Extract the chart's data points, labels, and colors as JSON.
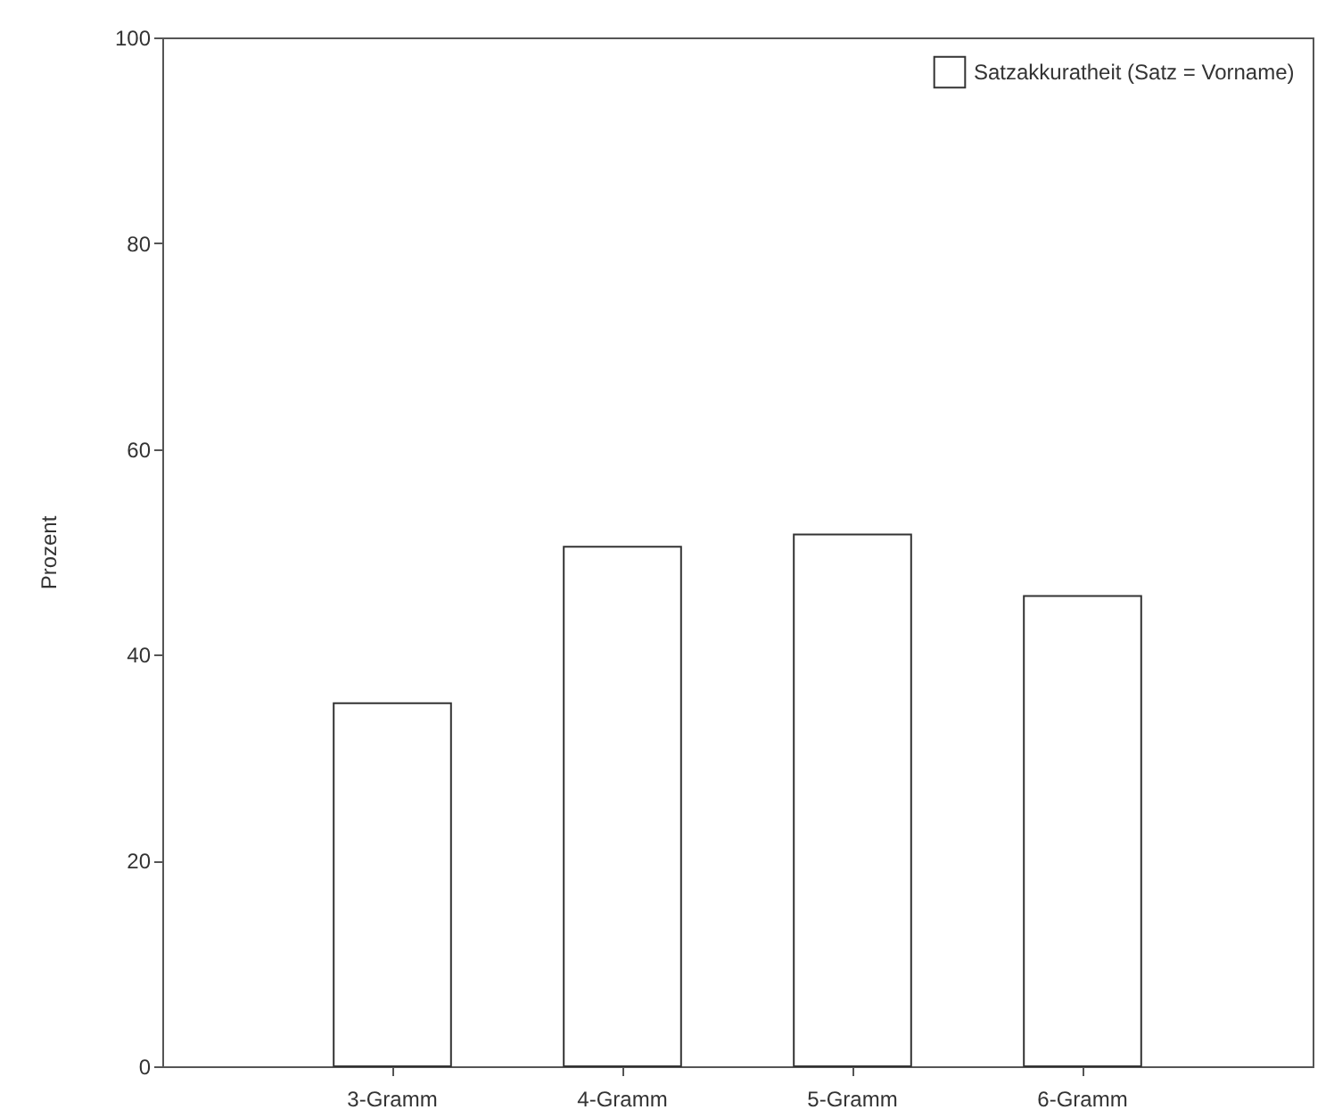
{
  "chart_data": {
    "type": "bar",
    "ylabel": "Prozent",
    "categories": [
      "3-Gramm",
      "4-Gramm",
      "5-Gramm",
      "6-Gramm"
    ],
    "series": [
      {
        "name": "Satzakkuratheit (Satz = Vorname)",
        "color": "#ffffff",
        "values": [
          35.3,
          50.5,
          51.7,
          45.7
        ]
      }
    ],
    "ylim": [
      0,
      100
    ],
    "yticks": [
      0,
      20,
      40,
      60,
      80,
      100
    ],
    "legend": "top right"
  }
}
